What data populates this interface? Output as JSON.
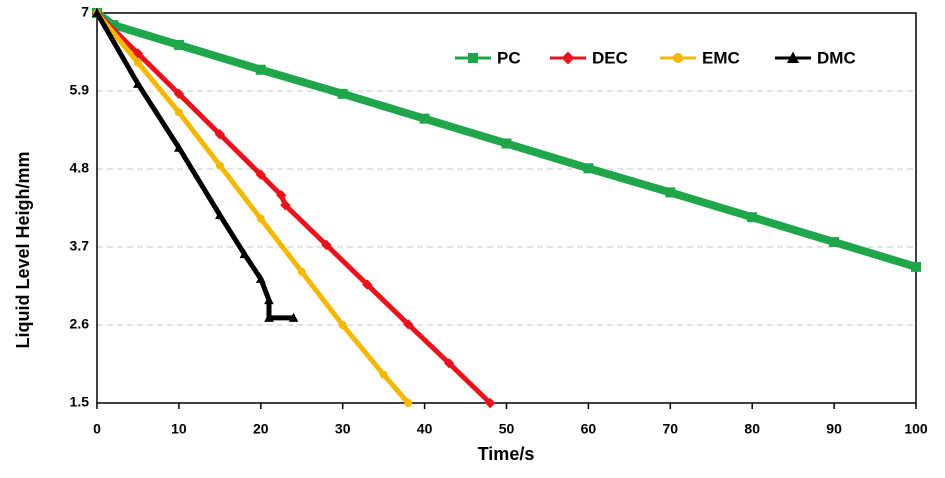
{
  "chart_data": {
    "type": "line",
    "x_label": "Time/s",
    "y_label": "Liquid Level Heigh/mm",
    "xlim": [
      0,
      100
    ],
    "xticks": [
      0,
      10,
      20,
      30,
      40,
      50,
      60,
      70,
      80,
      90,
      100
    ],
    "ylim": [
      1.5,
      7
    ],
    "yticks": [
      1.5,
      2.6,
      3.7,
      4.8,
      5.9,
      7
    ],
    "grid": true,
    "legend": "upper right",
    "series": [
      {
        "name": "PC",
        "color": "#1fa64a",
        "marker": "square",
        "x": [
          0,
          2,
          10,
          20,
          30,
          40,
          50,
          60,
          70,
          80,
          90,
          100
        ],
        "values": [
          7,
          6.83,
          6.55,
          6.2,
          5.86,
          5.51,
          5.16,
          4.81,
          4.47,
          4.12,
          3.77,
          3.42
        ]
      },
      {
        "name": "DEC",
        "color": "#e8141c",
        "marker": "diamond",
        "x": [
          0,
          5,
          10,
          15,
          20,
          22.5,
          23,
          28,
          33,
          38,
          43,
          48
        ],
        "values": [
          7,
          6.43,
          5.86,
          5.29,
          4.72,
          4.43,
          4.29,
          3.73,
          3.17,
          2.61,
          2.06,
          1.5
        ]
      },
      {
        "name": "EMC",
        "color": "#f5b800",
        "marker": "circle",
        "x": [
          0,
          5,
          10,
          15,
          20,
          25,
          30,
          35,
          38
        ],
        "values": [
          7,
          6.3,
          5.6,
          4.85,
          4.1,
          3.35,
          2.6,
          1.9,
          1.5
        ]
      },
      {
        "name": "DMC",
        "color": "#000000",
        "marker": "triangle",
        "x": [
          0,
          5,
          10,
          15,
          18,
          20,
          21,
          21,
          24
        ],
        "values": [
          7,
          6.0,
          5.1,
          4.15,
          3.6,
          3.25,
          2.95,
          2.7,
          2.7
        ]
      }
    ]
  }
}
